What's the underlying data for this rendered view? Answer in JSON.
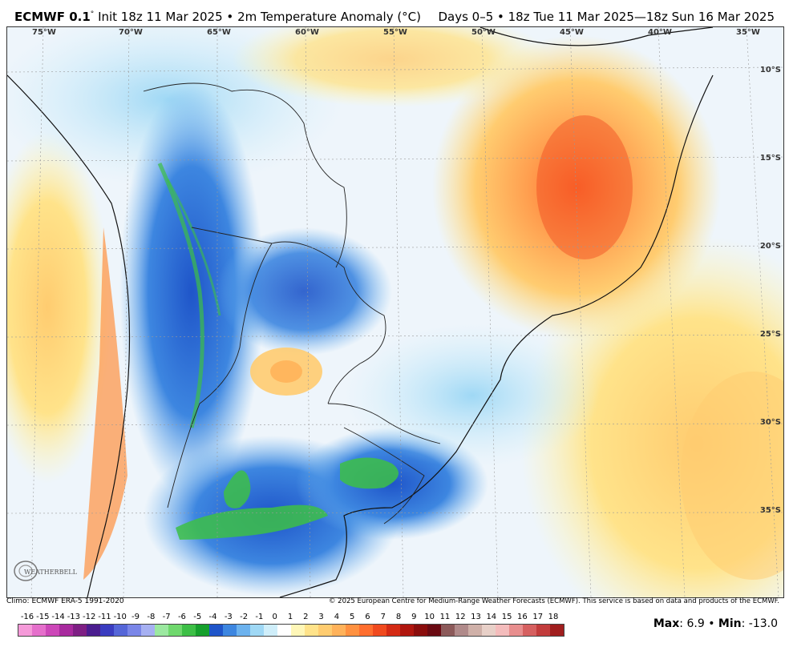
{
  "header": {
    "model": "ECMWF 0.1",
    "degree_mark": "°",
    "init": "Init 18z 11 Mar 2025",
    "bullet": "•",
    "product": "2m Temperature Anomaly (°C)",
    "valid": "Days 0–5 • 18z Tue 11 Mar 2025—18z Sun 16 Mar 2025"
  },
  "map": {
    "longitude_labels": [
      "75°W",
      "70°W",
      "65°W",
      "60°W",
      "55°W",
      "50°W",
      "45°W",
      "40°W",
      "35°W"
    ],
    "latitude_labels": [
      "10°S",
      "15°S",
      "20°S",
      "25°S",
      "30°S",
      "35°S"
    ]
  },
  "footer": {
    "climo": "Climo: ECMWF ERA-5 1991-2020",
    "copyright": "© 2025 European Centre for Medium-Range Weather Forecasts (ECMWF). This service is based on data and products of the ECMWF.",
    "logo_text": "WEATHERBELL"
  },
  "colorbar": {
    "ticks": [
      "-16",
      "-15",
      "-14",
      "-13",
      "-12",
      "-11",
      "-10",
      "-9",
      "-8",
      "-7",
      "-6",
      "-5",
      "-4",
      "-3",
      "-2",
      "-1",
      "0",
      "1",
      "2",
      "3",
      "4",
      "5",
      "6",
      "7",
      "8",
      "9",
      "10",
      "11",
      "12",
      "13",
      "14",
      "15",
      "16",
      "17",
      "18"
    ],
    "colors": [
      "#f59ad9",
      "#e56fcb",
      "#cc47b8",
      "#a82a9e",
      "#7e1f84",
      "#4b1d8f",
      "#3a3cc0",
      "#5566d8",
      "#7a86e8",
      "#a6b0f2",
      "#9be8a0",
      "#6fd86d",
      "#3dbf46",
      "#16a02c",
      "#1f55c9",
      "#3d86e0",
      "#6cb2ee",
      "#9fd8f5",
      "#cfeefa",
      "#ffffff",
      "#fff7b8",
      "#ffe38a",
      "#ffcc70",
      "#ffb25a",
      "#ff9140",
      "#ff6e2e",
      "#f04a1e",
      "#d42a14",
      "#b0160e",
      "#8a0d0c",
      "#6a0a12",
      "#8c5a5a",
      "#b08a8a",
      "#cfb0a8",
      "#e8d0c8",
      "#f4bcbc",
      "#e88e8e",
      "#d66060",
      "#c23c3c",
      "#a01e1e"
    ]
  },
  "stats": {
    "max_label": "Max",
    "max_value": ": 6.9",
    "bullet": "•",
    "min_label": "Min",
    "min_value": ": -13.0"
  }
}
